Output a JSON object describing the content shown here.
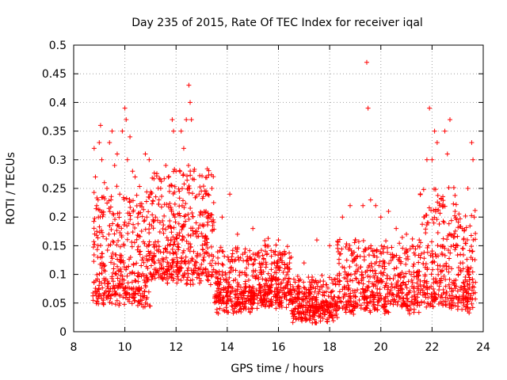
{
  "chart_data": {
    "type": "scatter",
    "title": "Day 235 of 2015, Rate Of TEC Index for receiver iqal",
    "xlabel": "GPS time / hours",
    "ylabel": "ROTI / TECUs",
    "xlim": [
      8,
      24
    ],
    "ylim": [
      0,
      0.5
    ],
    "xticks": [
      "8",
      "10",
      "12",
      "14",
      "16",
      "18",
      "20",
      "22",
      "24"
    ],
    "yticks": [
      "0",
      "0.05",
      "0.1",
      "0.15",
      "0.2",
      "0.25",
      "0.3",
      "0.35",
      "0.4",
      "0.45",
      "0.5"
    ],
    "grid": true,
    "marker": "plus",
    "marker_color": "#ff0000",
    "series": [
      {
        "name": "ROTI",
        "x_range": [
          8.75,
          23.7
        ],
        "notes": "dense cloud; values mostly 0.02-0.15 TECU/min, excursions near 9-10h, 12-13h and 22-23.5h",
        "points": [
          [
            8.8,
            0.32
          ],
          [
            8.85,
            0.27
          ],
          [
            8.9,
            0.22
          ],
          [
            8.95,
            0.15
          ],
          [
            9.0,
            0.33
          ],
          [
            9.05,
            0.36
          ],
          [
            9.1,
            0.3
          ],
          [
            9.2,
            0.26
          ],
          [
            9.3,
            0.25
          ],
          [
            9.4,
            0.33
          ],
          [
            9.5,
            0.35
          ],
          [
            9.6,
            0.29
          ],
          [
            9.7,
            0.31
          ],
          [
            9.8,
            0.24
          ],
          [
            9.9,
            0.35
          ],
          [
            10.0,
            0.39
          ],
          [
            10.05,
            0.37
          ],
          [
            10.1,
            0.3
          ],
          [
            10.2,
            0.34
          ],
          [
            10.3,
            0.28
          ],
          [
            10.4,
            0.27
          ],
          [
            10.5,
            0.2
          ],
          [
            10.6,
            0.22
          ],
          [
            10.8,
            0.31
          ],
          [
            10.95,
            0.3
          ],
          [
            11.0,
            0.24
          ],
          [
            11.2,
            0.2
          ],
          [
            11.4,
            0.25
          ],
          [
            11.6,
            0.29
          ],
          [
            11.85,
            0.37
          ],
          [
            11.9,
            0.35
          ],
          [
            12.0,
            0.28
          ],
          [
            12.2,
            0.35
          ],
          [
            12.3,
            0.32
          ],
          [
            12.4,
            0.37
          ],
          [
            12.5,
            0.43
          ],
          [
            12.55,
            0.4
          ],
          [
            12.6,
            0.37
          ],
          [
            12.7,
            0.28
          ],
          [
            12.9,
            0.24
          ],
          [
            13.1,
            0.21
          ],
          [
            13.4,
            0.25
          ],
          [
            13.8,
            0.2
          ],
          [
            14.1,
            0.24
          ],
          [
            14.4,
            0.17
          ],
          [
            15.0,
            0.18
          ],
          [
            15.5,
            0.15
          ],
          [
            16.0,
            0.16
          ],
          [
            16.5,
            0.13
          ],
          [
            17.0,
            0.12
          ],
          [
            17.5,
            0.16
          ],
          [
            18.0,
            0.15
          ],
          [
            18.5,
            0.2
          ],
          [
            18.8,
            0.22
          ],
          [
            19.0,
            0.16
          ],
          [
            19.3,
            0.22
          ],
          [
            19.45,
            0.47
          ],
          [
            19.5,
            0.39
          ],
          [
            19.6,
            0.23
          ],
          [
            19.8,
            0.22
          ],
          [
            20.0,
            0.2
          ],
          [
            20.3,
            0.21
          ],
          [
            20.6,
            0.18
          ],
          [
            21.0,
            0.17
          ],
          [
            21.5,
            0.16
          ],
          [
            21.8,
            0.3
          ],
          [
            21.9,
            0.39
          ],
          [
            22.0,
            0.3
          ],
          [
            22.1,
            0.35
          ],
          [
            22.2,
            0.33
          ],
          [
            22.3,
            0.22
          ],
          [
            22.5,
            0.35
          ],
          [
            22.6,
            0.31
          ],
          [
            22.7,
            0.37
          ],
          [
            22.9,
            0.21
          ],
          [
            23.0,
            0.15
          ],
          [
            23.2,
            0.12
          ],
          [
            23.4,
            0.25
          ],
          [
            23.55,
            0.33
          ],
          [
            23.6,
            0.3
          ],
          [
            23.65,
            0.2
          ]
        ]
      }
    ]
  }
}
